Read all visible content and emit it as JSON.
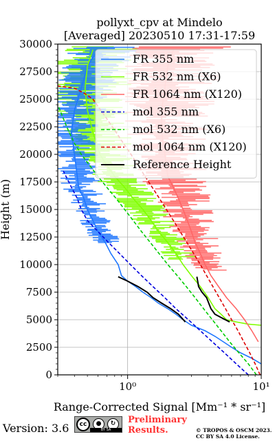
{
  "chart_data": {
    "type": "line",
    "title": "pollyxt_cpv at Mindelo",
    "subtitle": "[Averaged] 20230510 17:31-17:59",
    "xlabel": "Range-Corrected Signal [Mm⁻¹ * sr⁻¹]",
    "ylabel": "Height (m)",
    "xscale": "log",
    "xlim": [
      0.3,
      10
    ],
    "ylim": [
      0,
      30000
    ],
    "grid": true,
    "legend_position": "top-right",
    "x_ticks": [
      1,
      10
    ],
    "x_tick_labels": [
      "10⁰",
      "10¹"
    ],
    "y_ticks": [
      0,
      2500,
      5000,
      7500,
      10000,
      12500,
      15000,
      17500,
      20000,
      22500,
      25000,
      27500,
      30000
    ],
    "series": [
      {
        "name": "FR 355 nm",
        "color": "#1f77ff",
        "style": "solid",
        "points": [
          [
            10,
            1000
          ],
          [
            8.5,
            1500
          ],
          [
            7,
            2000
          ],
          [
            6,
            2500
          ],
          [
            5.2,
            3000
          ],
          [
            4.5,
            3500
          ],
          [
            3.8,
            4000
          ],
          [
            3,
            4500
          ],
          [
            2.6,
            5000
          ],
          [
            2.3,
            5500
          ],
          [
            2.0,
            6000
          ],
          [
            1.7,
            6500
          ],
          [
            1.5,
            7000
          ],
          [
            1.3,
            7500
          ],
          [
            1.15,
            8000
          ],
          [
            1.0,
            8500
          ],
          [
            0.9,
            9000
          ],
          [
            0.85,
            10000
          ],
          [
            0.75,
            11000
          ],
          [
            0.68,
            12000
          ],
          [
            0.6,
            13000
          ],
          [
            0.55,
            14000
          ],
          [
            0.5,
            15000
          ],
          [
            0.47,
            16000
          ],
          [
            0.43,
            17000
          ],
          [
            0.42,
            18000
          ],
          [
            0.4,
            20000
          ],
          [
            0.38,
            22000
          ],
          [
            0.4,
            24000
          ],
          [
            0.45,
            26000
          ],
          [
            0.5,
            28000
          ],
          [
            0.6,
            29500
          ]
        ]
      },
      {
        "name": "FR 532 nm (X6)",
        "color": "#80ff00",
        "style": "solid",
        "points": [
          [
            10,
            4500
          ],
          [
            8,
            4600
          ],
          [
            6.5,
            4800
          ],
          [
            5.5,
            5000
          ],
          [
            5,
            5500
          ],
          [
            4.5,
            6000
          ],
          [
            4,
            7000
          ],
          [
            3.5,
            8000
          ],
          [
            3.0,
            9000
          ],
          [
            2.6,
            10000
          ],
          [
            2.3,
            11000
          ],
          [
            2.0,
            12000
          ],
          [
            1.7,
            13000
          ],
          [
            1.5,
            14000
          ],
          [
            1.3,
            15000
          ],
          [
            1.1,
            16000
          ],
          [
            0.95,
            17000
          ],
          [
            0.8,
            18000
          ],
          [
            0.7,
            19000
          ],
          [
            0.62,
            20000
          ],
          [
            0.55,
            22000
          ],
          [
            0.5,
            24000
          ],
          [
            0.48,
            26000
          ],
          [
            0.5,
            28000
          ],
          [
            0.55,
            29500
          ]
        ]
      },
      {
        "name": "FR 1064 nm (X120)",
        "color": "#ff6666",
        "style": "solid",
        "points": [
          [
            9.5,
            3000
          ],
          [
            8.5,
            4000
          ],
          [
            7.5,
            5000
          ],
          [
            6.5,
            6000
          ],
          [
            5.5,
            7000
          ],
          [
            4.8,
            8000
          ],
          [
            4.2,
            9000
          ],
          [
            3.8,
            10000
          ],
          [
            3.5,
            11000
          ],
          [
            3.2,
            12000
          ],
          [
            3.0,
            13000
          ],
          [
            2.8,
            14000
          ],
          [
            2.6,
            15000
          ],
          [
            2.4,
            16000
          ],
          [
            2.2,
            17000
          ],
          [
            2.0,
            18000
          ],
          [
            1.9,
            20000
          ],
          [
            1.8,
            22000
          ],
          [
            1.8,
            24000
          ],
          [
            1.9,
            26000
          ],
          [
            2.0,
            28000
          ],
          [
            2.2,
            29500
          ]
        ]
      },
      {
        "name": "mol 355 nm",
        "color": "#0000dd",
        "style": "dashed",
        "points": [
          [
            8.0,
            0
          ],
          [
            6.5,
            1000
          ],
          [
            5.3,
            2000
          ],
          [
            4.3,
            3000
          ],
          [
            3.5,
            4000
          ],
          [
            2.85,
            5000
          ],
          [
            2.3,
            6000
          ],
          [
            1.9,
            7000
          ],
          [
            1.55,
            8000
          ],
          [
            1.27,
            9000
          ],
          [
            1.05,
            10000
          ],
          [
            0.87,
            11000
          ],
          [
            0.72,
            12000
          ],
          [
            0.6,
            13000
          ],
          [
            0.5,
            14000
          ],
          [
            0.45,
            15000
          ],
          [
            0.42,
            16000
          ],
          [
            0.38,
            17000
          ],
          [
            0.33,
            18500
          ]
        ]
      },
      {
        "name": "mol 532 nm (X6)",
        "color": "#00cc00",
        "style": "dashed",
        "points": [
          [
            9.2,
            0
          ],
          [
            8.0,
            1000
          ],
          [
            6.8,
            2000
          ],
          [
            5.8,
            3000
          ],
          [
            5.0,
            4000
          ],
          [
            4.3,
            5000
          ],
          [
            3.7,
            6000
          ],
          [
            3.2,
            7000
          ],
          [
            2.75,
            8000
          ],
          [
            2.35,
            9000
          ],
          [
            2.0,
            10000
          ],
          [
            1.72,
            11000
          ],
          [
            1.48,
            12000
          ],
          [
            1.27,
            13000
          ],
          [
            1.1,
            14000
          ],
          [
            0.95,
            15000
          ],
          [
            0.82,
            16000
          ],
          [
            0.7,
            17000
          ],
          [
            0.6,
            18000
          ],
          [
            0.52,
            19000
          ],
          [
            0.45,
            20000
          ],
          [
            0.4,
            21000
          ],
          [
            0.35,
            22500
          ],
          [
            0.3,
            24500
          ]
        ]
      },
      {
        "name": "mol 1064 nm (X120)",
        "color": "#dd0000",
        "style": "dashed",
        "points": [
          [
            9.8,
            0
          ],
          [
            9.0,
            1000
          ],
          [
            8.2,
            2000
          ],
          [
            7.4,
            3000
          ],
          [
            6.7,
            4000
          ],
          [
            6.0,
            5000
          ],
          [
            5.4,
            6000
          ],
          [
            4.85,
            7000
          ],
          [
            4.35,
            8000
          ],
          [
            3.9,
            9000
          ],
          [
            3.5,
            10000
          ],
          [
            3.12,
            11000
          ],
          [
            2.78,
            12000
          ],
          [
            2.47,
            13000
          ],
          [
            2.2,
            14000
          ],
          [
            1.95,
            15000
          ],
          [
            1.73,
            16000
          ],
          [
            1.53,
            17000
          ],
          [
            1.35,
            18000
          ],
          [
            1.2,
            19000
          ],
          [
            1.06,
            20000
          ],
          [
            0.93,
            21000
          ],
          [
            0.82,
            22000
          ],
          [
            0.72,
            23000
          ],
          [
            0.63,
            24000
          ],
          [
            0.55,
            25000
          ],
          [
            0.48,
            25500
          ],
          [
            0.4,
            26000
          ],
          [
            0.3,
            26200
          ]
        ]
      },
      {
        "name": "Reference Height",
        "color": "#000000",
        "style": "solid",
        "points": [
          [
            0.85,
            8900
          ],
          [
            1.0,
            8500
          ],
          [
            1.2,
            8000
          ],
          [
            1.4,
            7500
          ],
          [
            1.55,
            7000
          ],
          [
            1.8,
            6500
          ],
          [
            2.1,
            6000
          ],
          [
            2.4,
            5500
          ],
          [
            2.7,
            4800
          ],
          [
            3.3,
            8900
          ],
          [
            3.4,
            8000
          ],
          [
            3.6,
            7500
          ],
          [
            3.9,
            7000
          ],
          [
            4.2,
            6000
          ],
          [
            4.5,
            5500
          ],
          [
            5.0,
            5200
          ],
          [
            5.8,
            4800
          ]
        ]
      }
    ]
  },
  "footer": {
    "version": "Version: 3.6",
    "license_badge": {
      "cc": "cc",
      "by": "BY",
      "sa": "SA"
    },
    "preliminary_line1": "Preliminary",
    "preliminary_line2": "Results.",
    "copyright_line1": "© TROPOS & OSCM 2023.",
    "copyright_line2": "CC BY SA 4.0 License."
  }
}
